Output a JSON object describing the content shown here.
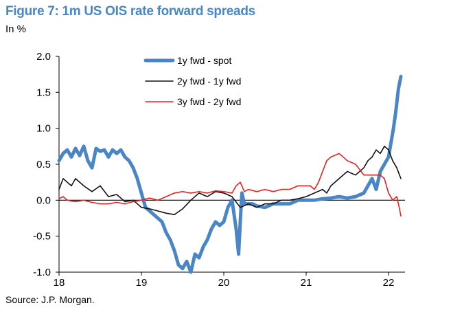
{
  "chart_data": {
    "type": "line",
    "title": "Figure 7: 1m US OIS rate forward spreads",
    "subtitle": "In %",
    "source": "Source: J.P. Morgan.",
    "xlabel": "",
    "ylabel": "",
    "xlim": [
      18.0,
      22.2
    ],
    "ylim": [
      -1.0,
      2.0
    ],
    "x_ticks": [
      "18",
      "19",
      "20",
      "21",
      "22"
    ],
    "y_ticks": [
      "2.0",
      "1.5",
      "1.0",
      "0.5",
      "0.0",
      "-0.5",
      "-1.0"
    ],
    "legend_position": "top-center",
    "series": [
      {
        "name": "1y fwd - spot",
        "color": "#4a86c5",
        "x": [
          18.0,
          18.05,
          18.1,
          18.15,
          18.2,
          18.25,
          18.3,
          18.35,
          18.4,
          18.45,
          18.5,
          18.55,
          18.6,
          18.65,
          18.7,
          18.75,
          18.8,
          18.85,
          18.9,
          18.95,
          19.0,
          19.05,
          19.1,
          19.15,
          19.2,
          19.25,
          19.3,
          19.35,
          19.4,
          19.45,
          19.5,
          19.55,
          19.6,
          19.65,
          19.7,
          19.75,
          19.8,
          19.85,
          19.9,
          19.95,
          20.0,
          20.05,
          20.1,
          20.15,
          20.18,
          20.2,
          20.22,
          20.25,
          20.3,
          20.35,
          20.4,
          20.5,
          20.6,
          20.7,
          20.8,
          20.9,
          21.0,
          21.1,
          21.2,
          21.3,
          21.4,
          21.5,
          21.6,
          21.7,
          21.75,
          21.8,
          21.85,
          21.9,
          21.95,
          22.0,
          22.03,
          22.06,
          22.09,
          22.12,
          22.15
        ],
        "values": [
          0.55,
          0.65,
          0.7,
          0.6,
          0.72,
          0.62,
          0.75,
          0.55,
          0.45,
          0.72,
          0.68,
          0.7,
          0.6,
          0.7,
          0.65,
          0.7,
          0.6,
          0.55,
          0.45,
          0.3,
          0.1,
          -0.1,
          -0.15,
          -0.2,
          -0.25,
          -0.3,
          -0.45,
          -0.55,
          -0.7,
          -0.9,
          -0.95,
          -0.85,
          -1.0,
          -0.75,
          -0.8,
          -0.65,
          -0.55,
          -0.4,
          -0.3,
          -0.35,
          -0.3,
          -0.1,
          0.0,
          -0.4,
          -0.75,
          -0.3,
          0.1,
          -0.05,
          -0.05,
          -0.05,
          -0.08,
          -0.1,
          -0.05,
          -0.05,
          -0.05,
          0.0,
          0.0,
          0.0,
          0.02,
          0.03,
          0.05,
          0.03,
          0.05,
          0.1,
          0.2,
          0.3,
          0.15,
          0.4,
          0.5,
          0.6,
          0.8,
          1.0,
          1.25,
          1.55,
          1.72
        ]
      },
      {
        "name": "2y fwd - 1y fwd",
        "color": "#111111",
        "x": [
          18.0,
          18.05,
          18.1,
          18.15,
          18.2,
          18.3,
          18.4,
          18.5,
          18.6,
          18.7,
          18.8,
          18.9,
          19.0,
          19.1,
          19.2,
          19.3,
          19.4,
          19.5,
          19.6,
          19.7,
          19.8,
          19.9,
          20.0,
          20.1,
          20.2,
          20.3,
          20.4,
          20.5,
          20.6,
          20.7,
          20.8,
          20.9,
          21.0,
          21.1,
          21.2,
          21.25,
          21.3,
          21.4,
          21.5,
          21.6,
          21.7,
          21.75,
          21.8,
          21.85,
          21.9,
          21.95,
          22.0,
          22.05,
          22.1,
          22.15
        ],
        "values": [
          0.15,
          0.3,
          0.25,
          0.2,
          0.3,
          0.2,
          0.12,
          0.2,
          0.05,
          0.08,
          -0.02,
          0.0,
          -0.1,
          -0.12,
          -0.15,
          -0.18,
          -0.2,
          -0.12,
          0.0,
          0.1,
          0.05,
          0.12,
          0.1,
          0.05,
          -0.1,
          -0.05,
          -0.1,
          -0.05,
          -0.05,
          0.0,
          0.0,
          0.02,
          0.05,
          0.1,
          0.15,
          0.1,
          0.2,
          0.3,
          0.4,
          0.35,
          0.45,
          0.55,
          0.6,
          0.7,
          0.65,
          0.75,
          0.7,
          0.55,
          0.45,
          0.3
        ]
      },
      {
        "name": "3y fwd - 2y fwd",
        "color": "#e8201f",
        "x": [
          18.0,
          18.05,
          18.1,
          18.2,
          18.3,
          18.4,
          18.5,
          18.6,
          18.7,
          18.8,
          18.9,
          19.0,
          19.1,
          19.2,
          19.3,
          19.4,
          19.5,
          19.6,
          19.7,
          19.8,
          19.9,
          20.0,
          20.1,
          20.15,
          20.2,
          20.25,
          20.3,
          20.4,
          20.5,
          20.6,
          20.7,
          20.8,
          20.9,
          21.0,
          21.05,
          21.1,
          21.15,
          21.2,
          21.25,
          21.3,
          21.4,
          21.5,
          21.6,
          21.7,
          21.8,
          21.9,
          21.95,
          22.0,
          22.05,
          22.1,
          22.13,
          22.15
        ],
        "values": [
          0.02,
          0.05,
          0.0,
          -0.02,
          0.0,
          -0.03,
          -0.05,
          -0.05,
          -0.03,
          -0.05,
          -0.02,
          0.0,
          0.03,
          0.0,
          0.05,
          0.1,
          0.12,
          0.1,
          0.12,
          0.1,
          0.13,
          0.12,
          0.1,
          0.2,
          0.25,
          0.12,
          0.15,
          0.12,
          0.15,
          0.12,
          0.15,
          0.15,
          0.2,
          0.2,
          0.2,
          0.15,
          0.25,
          0.4,
          0.55,
          0.6,
          0.65,
          0.55,
          0.5,
          0.35,
          0.35,
          0.35,
          0.3,
          0.1,
          0.0,
          0.05,
          -0.1,
          -0.22
        ]
      }
    ]
  }
}
